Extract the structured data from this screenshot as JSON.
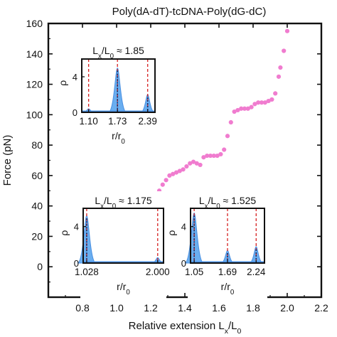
{
  "chart_data": {
    "type": "scatter",
    "title": "Poly(dA-dT)-tcDNA-Poly(dG-dC)",
    "xlabel": "Relative extension L",
    "xlabel_sub": "x",
    "xlabel_tail": "/L",
    "xlabel_sub2": "0",
    "ylabel": "Force (pN)",
    "xlim": [
      0.6,
      2.2
    ],
    "ylim": [
      -20,
      160
    ],
    "xticks": [
      "0.8",
      "1.0",
      "1.2",
      "1.4",
      "1.6",
      "1.8",
      "2.0",
      "2.2"
    ],
    "yticks": [
      "0",
      "20",
      "40",
      "60",
      "80",
      "100",
      "120",
      "140",
      "160"
    ],
    "grid": false,
    "colors": {
      "points": "#f07ccf",
      "density": "#4a90e2",
      "density_fill": "#6aaef0",
      "marker": "#d62020",
      "axis": "#111111"
    },
    "series": [
      {
        "x": [
          0.8,
          0.83,
          0.86,
          0.89,
          0.91,
          0.93,
          0.95,
          0.97,
          0.99,
          1.01,
          1.03,
          1.05,
          1.07,
          1.09,
          1.11,
          1.13,
          1.15,
          1.17,
          1.19,
          1.21,
          1.23,
          1.25,
          1.27,
          1.29,
          1.31,
          1.33,
          1.35,
          1.37,
          1.39,
          1.41,
          1.43,
          1.45,
          1.47,
          1.49,
          1.51,
          1.53,
          1.55,
          1.57,
          1.59,
          1.61,
          1.63,
          1.65,
          1.67,
          1.69,
          1.71,
          1.73,
          1.75,
          1.77,
          1.79,
          1.81,
          1.83,
          1.85,
          1.87,
          1.89,
          1.91,
          1.93,
          1.95,
          1.96,
          1.98,
          2.0
        ],
        "y": [
          2,
          2,
          4,
          6,
          9,
          12,
          17,
          22,
          26,
          29,
          31,
          32,
          33,
          33,
          34,
          34,
          35,
          36,
          38,
          41,
          45,
          50,
          54,
          57,
          60,
          61,
          62,
          63,
          64,
          66,
          68,
          69,
          68,
          67,
          72,
          73,
          73,
          73,
          73,
          74,
          77,
          86,
          95,
          102,
          103,
          104,
          104,
          104,
          105,
          107,
          108,
          108,
          108,
          109,
          110,
          114,
          125,
          131,
          142,
          155
        ]
      }
    ],
    "insets": [
      {
        "label_pre": "L",
        "label_sub": "x",
        "label_mid": "/L",
        "label_sub2": "0",
        "label_post": " ≈ 1.85",
        "xlabel": "r/r",
        "xlabel_sub": "0",
        "ylabel": "ρ",
        "yticks": [
          "0",
          "4"
        ],
        "ylim": [
          0,
          6
        ],
        "xlim": [
          0.95,
          2.55
        ],
        "peaks_r": [
          "1.10",
          "1.73",
          "2.39"
        ],
        "peaks": [
          {
            "r": 1.1,
            "height": 0.4
          },
          {
            "r": 1.73,
            "height": 5.0
          },
          {
            "r": 2.39,
            "height": 2.0
          }
        ]
      },
      {
        "label_pre": "L",
        "label_sub": "x",
        "label_mid": "/L",
        "label_sub2": "0",
        "label_post": " ≈ 1.175",
        "xlabel": "r/r",
        "xlabel_sub": "0",
        "ylabel": "ρ",
        "yticks": [
          "0",
          "4"
        ],
        "ylim": [
          0,
          6
        ],
        "xlim": [
          0.98,
          2.08
        ],
        "peaks_r": [
          "1.028",
          "2.000"
        ],
        "peaks": [
          {
            "r": 1.028,
            "height": 5.2
          },
          {
            "r": 2.0,
            "height": 0.6
          }
        ]
      },
      {
        "label_pre": "L",
        "label_sub": "x",
        "label_mid": "/L",
        "label_sub2": "0",
        "label_post": " ≈ 1.525",
        "xlabel": "r/r",
        "xlabel_sub": "0",
        "ylabel": "ρ",
        "yticks": [
          "0",
          "4"
        ],
        "ylim": [
          0,
          6
        ],
        "xlim": [
          0.98,
          2.4
        ],
        "peaks_r": [
          "1.05",
          "1.69",
          "2.24"
        ],
        "peaks": [
          {
            "r": 1.05,
            "height": 5.5
          },
          {
            "r": 1.69,
            "height": 1.4
          },
          {
            "r": 2.24,
            "height": 1.8
          }
        ]
      }
    ]
  }
}
